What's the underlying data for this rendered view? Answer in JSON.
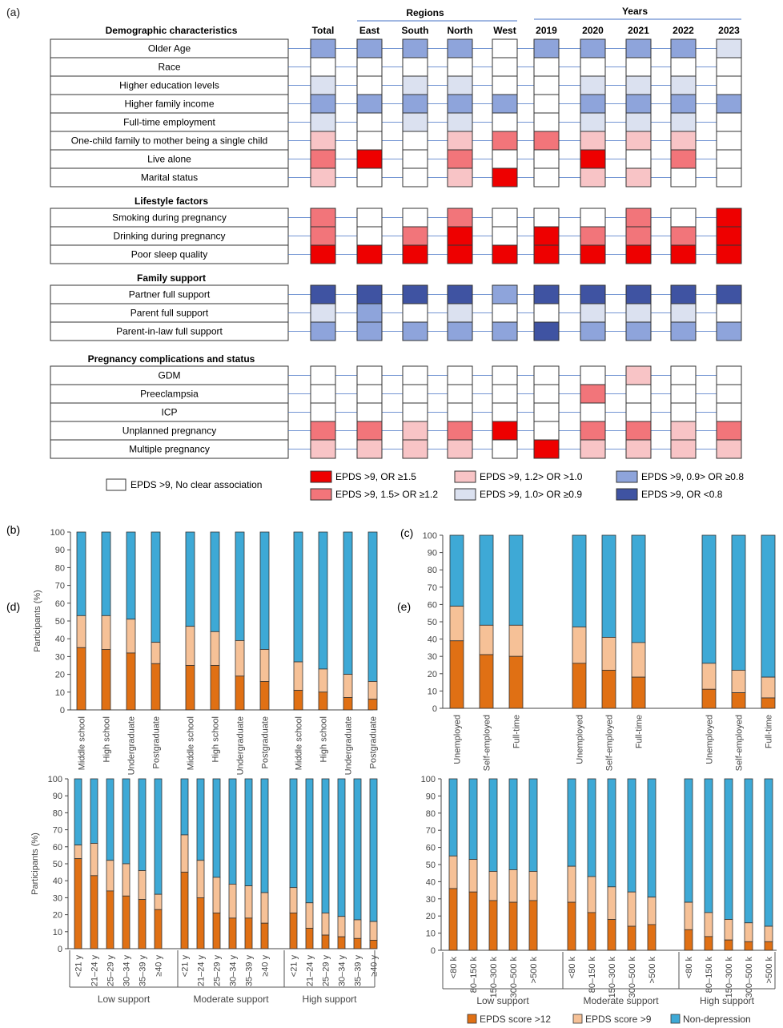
{
  "colors": {
    "or_ge_1_5": "#ee0000",
    "or_1_5_1_2": "#f2757a",
    "or_1_2_1_0": "#f8c4c6",
    "or_1_0_0_9": "#dbe1f0",
    "or_0_9_0_8": "#8ea4db",
    "or_lt_0_8": "#3f53a2",
    "none": "#ffffff",
    "epds12": "#e07014",
    "epds9": "#f6c197",
    "nondep": "#3ea9d6"
  },
  "panel_a": {
    "label": "(a)",
    "regions_header": "Regions",
    "years_header": "Years",
    "columns": [
      "Total",
      "East",
      "South",
      "North",
      "West",
      "2019",
      "2020",
      "2021",
      "2022",
      "2023"
    ],
    "sections": [
      {
        "title": "Demographic characteristics",
        "rows": [
          {
            "label": "Older Age",
            "cells": [
              "d",
              "d",
              "d",
              "d",
              "n",
              "d",
              "d",
              "d",
              "d",
              "l"
            ]
          },
          {
            "label": "Race",
            "cells": [
              "n",
              "n",
              "n",
              "n",
              "n",
              "n",
              "n",
              "n",
              "n",
              "n"
            ]
          },
          {
            "label": "Higher education levels",
            "cells": [
              "l",
              "n",
              "l",
              "l",
              "n",
              "n",
              "l",
              "l",
              "l",
              "n"
            ]
          },
          {
            "label": "Higher family income",
            "cells": [
              "d",
              "d",
              "d",
              "d",
              "d",
              "n",
              "d",
              "d",
              "d",
              "d"
            ]
          },
          {
            "label": "Full-time employment",
            "cells": [
              "l",
              "n",
              "l",
              "l",
              "n",
              "n",
              "l",
              "l",
              "l",
              "n"
            ]
          },
          {
            "label": "One-child family to mother being a single child",
            "cells": [
              "p",
              "n",
              "n",
              "p",
              "m",
              "m",
              "p",
              "p",
              "p",
              "n"
            ]
          },
          {
            "label": "Live alone",
            "cells": [
              "m",
              "r",
              "n",
              "m",
              "n",
              "n",
              "r",
              "n",
              "m",
              "n"
            ]
          },
          {
            "label": "Marital status",
            "cells": [
              "p",
              "n",
              "n",
              "p",
              "r",
              "n",
              "p",
              "p",
              "n",
              "n"
            ]
          }
        ]
      },
      {
        "title": "Lifestyle factors",
        "rows": [
          {
            "label": "Smoking during pregnancy",
            "cells": [
              "m",
              "n",
              "n",
              "m",
              "n",
              "n",
              "n",
              "m",
              "n",
              "r"
            ]
          },
          {
            "label": "Drinking during pregnancy",
            "cells": [
              "m",
              "n",
              "m",
              "r",
              "n",
              "r",
              "m",
              "m",
              "m",
              "r"
            ]
          },
          {
            "label": "Poor sleep quality",
            "cells": [
              "r",
              "r",
              "r",
              "r",
              "r",
              "r",
              "r",
              "r",
              "r",
              "r"
            ]
          }
        ]
      },
      {
        "title": "Family support",
        "rows": [
          {
            "label": "Partner full support",
            "cells": [
              "D",
              "D",
              "D",
              "D",
              "d",
              "D",
              "D",
              "D",
              "D",
              "D"
            ]
          },
          {
            "label": "Parent full support",
            "cells": [
              "l",
              "d",
              "n",
              "l",
              "n",
              "n",
              "l",
              "l",
              "l",
              "n"
            ]
          },
          {
            "label": "Parent-in-law full support",
            "cells": [
              "d",
              "d",
              "d",
              "d",
              "d",
              "D",
              "d",
              "d",
              "d",
              "d"
            ]
          }
        ]
      },
      {
        "title": "Pregnancy complications and status",
        "rows": [
          {
            "label": "GDM",
            "cells": [
              "n",
              "n",
              "n",
              "n",
              "n",
              "n",
              "n",
              "p",
              "n",
              "n"
            ]
          },
          {
            "label": "Preeclampsia",
            "cells": [
              "n",
              "n",
              "n",
              "n",
              "n",
              "n",
              "m",
              "n",
              "n",
              "n"
            ]
          },
          {
            "label": "ICP",
            "cells": [
              "n",
              "n",
              "n",
              "n",
              "n",
              "n",
              "n",
              "n",
              "n",
              "n"
            ]
          },
          {
            "label": "Unplanned pregnancy",
            "cells": [
              "m",
              "m",
              "p",
              "m",
              "r",
              "n",
              "m",
              "m",
              "p",
              "m"
            ]
          },
          {
            "label": "Multiple pregnancy",
            "cells": [
              "p",
              "p",
              "p",
              "p",
              "n",
              "r",
              "p",
              "p",
              "p",
              "p"
            ]
          }
        ]
      }
    ],
    "legend": [
      {
        "code": "n",
        "label": "EPDS >9, No clear association"
      },
      {
        "code": "r",
        "label": "EPDS >9, OR ≥1.5"
      },
      {
        "code": "m",
        "label": "EPDS >9, 1.5> OR ≥1.2"
      },
      {
        "code": "p",
        "label": "EPDS >9, 1.2> OR >1.0"
      },
      {
        "code": "l",
        "label": "EPDS >9, 1.0> OR ≥0.9"
      },
      {
        "code": "d",
        "label": "EPDS >9, 0.9> OR ≥0.8"
      },
      {
        "code": "D",
        "label": "EPDS >9, OR <0.8"
      }
    ]
  },
  "chart_data": [
    {
      "panel": "(b)",
      "type": "bar",
      "stacked": true,
      "ylabel": "Participants (%)",
      "ylim": [
        0,
        100
      ],
      "yticks": [
        0,
        10,
        20,
        30,
        40,
        50,
        60,
        70,
        80,
        90,
        100
      ],
      "groups": [
        {
          "label": "",
          "categories": [
            "Middle school",
            "High school",
            "Undergraduate",
            "Postgraduate"
          ],
          "epds12": [
            35,
            34,
            32,
            26
          ],
          "epds9": [
            53,
            53,
            51,
            38
          ]
        },
        {
          "label": "",
          "categories": [
            "Middle school",
            "High school",
            "Undergraduate",
            "Postgraduate"
          ],
          "epds12": [
            25,
            25,
            19,
            16
          ],
          "epds9": [
            47,
            44,
            39,
            34
          ]
        },
        {
          "label": "",
          "categories": [
            "Middle school",
            "High school",
            "Undergraduate",
            "Postgraduate"
          ],
          "epds12": [
            11,
            10,
            7,
            6
          ],
          "epds9": [
            27,
            23,
            20,
            16
          ]
        }
      ]
    },
    {
      "panel": "(c)",
      "type": "bar",
      "stacked": true,
      "ylabel": "",
      "ylim": [
        0,
        100
      ],
      "yticks": [
        0,
        10,
        20,
        30,
        40,
        50,
        60,
        70,
        80,
        90,
        100
      ],
      "groups": [
        {
          "label": "",
          "categories": [
            "Unemployed",
            "Self-employed",
            "Full-time"
          ],
          "epds12": [
            39,
            31,
            30
          ],
          "epds9": [
            59,
            48,
            48
          ]
        },
        {
          "label": "",
          "categories": [
            "Unemployed",
            "Self-employed",
            "Full-time"
          ],
          "epds12": [
            26,
            22,
            18
          ],
          "epds9": [
            47,
            41,
            38
          ]
        },
        {
          "label": "",
          "categories": [
            "Unemployed",
            "Self-employed",
            "Full-time"
          ],
          "epds12": [
            11,
            9,
            6
          ],
          "epds9": [
            26,
            22,
            18
          ]
        }
      ]
    },
    {
      "panel": "(d)",
      "type": "bar",
      "stacked": true,
      "ylabel": "Participants (%)",
      "ylim": [
        0,
        100
      ],
      "yticks": [
        0,
        10,
        20,
        30,
        40,
        50,
        60,
        70,
        80,
        90,
        100
      ],
      "groups": [
        {
          "label": "Low support",
          "categories": [
            "<21 y",
            "21–24 y",
            "25–29 y",
            "30–34 y",
            "35–39 y",
            "≥40 y"
          ],
          "epds12": [
            53,
            43,
            34,
            31,
            29,
            23
          ],
          "epds9": [
            61,
            62,
            52,
            50,
            46,
            32
          ]
        },
        {
          "label": "Moderate support",
          "categories": [
            "<21 y",
            "21–24 y",
            "25–29 y",
            "30–34 y",
            "35–39 y",
            "≥40 y"
          ],
          "epds12": [
            45,
            30,
            21,
            18,
            18,
            15
          ],
          "epds9": [
            67,
            52,
            42,
            38,
            37,
            33
          ]
        },
        {
          "label": "High support",
          "categories": [
            "<21 y",
            "21–24 y",
            "25–29 y",
            "30–34 y",
            "35–39 y",
            "≥40 y"
          ],
          "epds12": [
            21,
            12,
            8,
            7,
            6,
            5
          ],
          "epds9": [
            36,
            27,
            21,
            19,
            17,
            16
          ]
        }
      ]
    },
    {
      "panel": "(e)",
      "type": "bar",
      "stacked": true,
      "ylabel": "",
      "ylim": [
        0,
        100
      ],
      "yticks": [
        0,
        10,
        20,
        30,
        40,
        50,
        60,
        70,
        80,
        90,
        100
      ],
      "groups": [
        {
          "label": "Low support",
          "categories": [
            "<80 k",
            "80–150 k",
            "150–300 k",
            "300–500 k",
            ">500 k"
          ],
          "epds12": [
            36,
            34,
            29,
            28,
            29
          ],
          "epds9": [
            55,
            53,
            46,
            47,
            46
          ]
        },
        {
          "label": "Moderate support",
          "categories": [
            "<80 k",
            "80–150 k",
            "150–300 k",
            "300–500 k",
            ">500 k"
          ],
          "epds12": [
            28,
            22,
            18,
            14,
            15
          ],
          "epds9": [
            49,
            43,
            37,
            34,
            31
          ]
        },
        {
          "label": "High support",
          "categories": [
            "<80 k",
            "80–150 k",
            "150–300 k",
            "300–500 k",
            ">500 k"
          ],
          "epds12": [
            12,
            8,
            6,
            5,
            5
          ],
          "epds9": [
            28,
            22,
            18,
            16,
            14
          ]
        }
      ]
    }
  ],
  "bar_legend": [
    "EPDS score >12",
    "EPDS score >9",
    "Non-depression"
  ]
}
